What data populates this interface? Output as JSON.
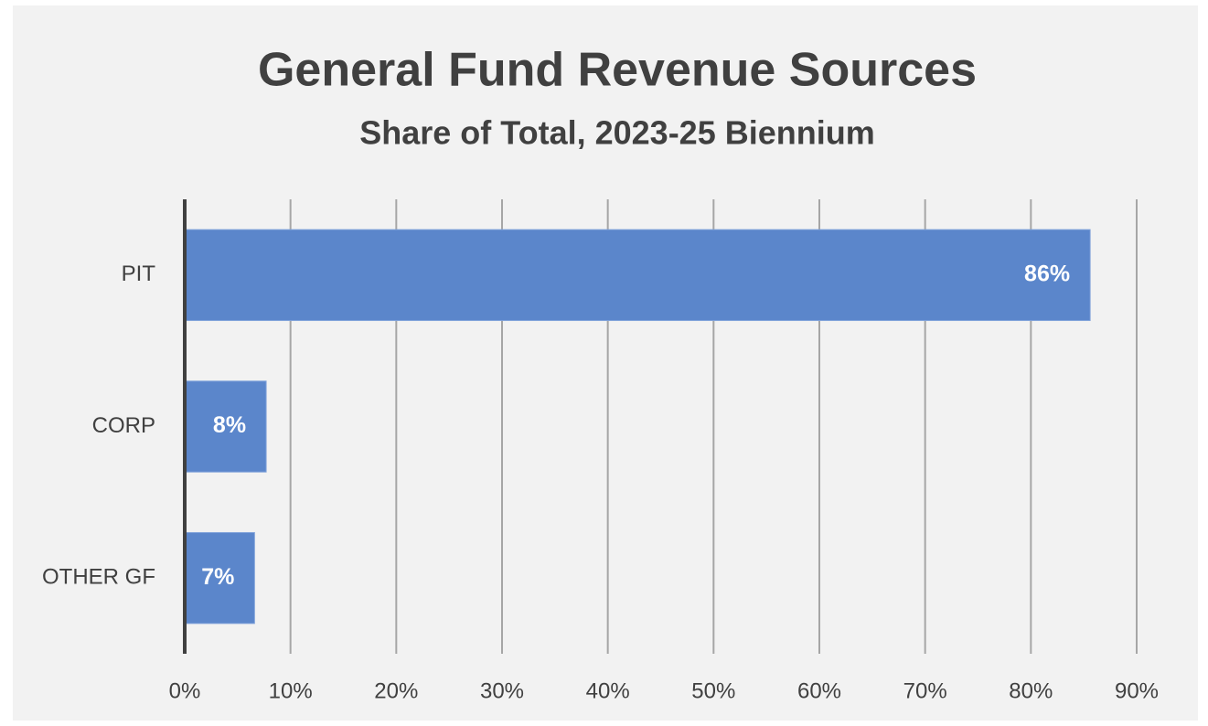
{
  "chart_data": {
    "type": "barh",
    "title": "General Fund Revenue Sources",
    "subtitle": "Share of Total, 2023-25 Biennium",
    "categories": [
      "PIT",
      "CORP",
      "OTHER GF"
    ],
    "values": [
      85.6,
      7.7,
      6.6
    ],
    "value_labels": [
      "86%",
      "8%",
      "7%"
    ],
    "color": "#5b86cb",
    "xlim": [
      0,
      90
    ],
    "xticks": [
      {
        "value": 0,
        "label": "0%"
      },
      {
        "value": 10,
        "label": "10%"
      },
      {
        "value": 20,
        "label": "20%"
      },
      {
        "value": 30,
        "label": "30%"
      },
      {
        "value": 40,
        "label": "40%"
      },
      {
        "value": 50,
        "label": "50%"
      },
      {
        "value": 60,
        "label": "60%"
      },
      {
        "value": 70,
        "label": "70%"
      },
      {
        "value": 80,
        "label": "80%"
      },
      {
        "value": 90,
        "label": "90%"
      }
    ],
    "grid": true
  }
}
